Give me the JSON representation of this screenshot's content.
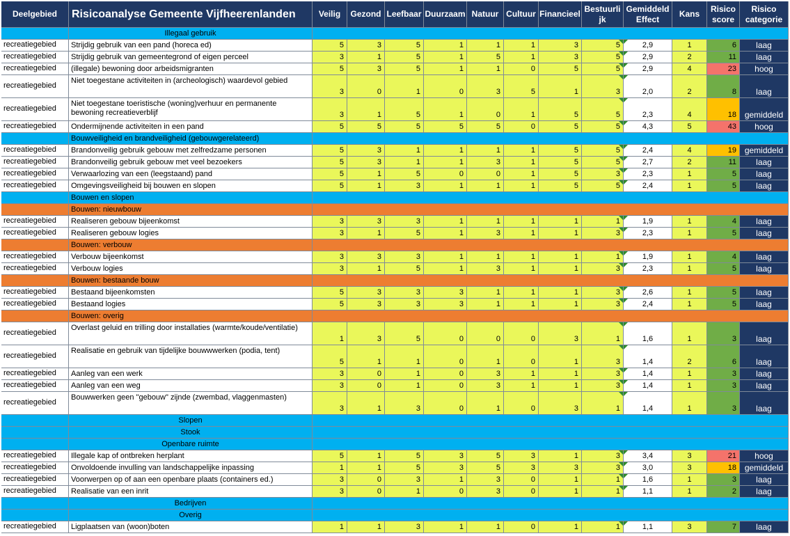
{
  "headers": {
    "deelgebied": "Deelgebied",
    "title": "Risicoanalyse Gemeente Vijfheerenlanden",
    "veilig": "Veilig",
    "gezond": "Gezond",
    "leefbaar": "Leefbaar",
    "duurzaam": "Duurzaam",
    "natuur": "Natuur",
    "cultuur": "Cultuur",
    "financieel": "Financieel",
    "bestuurlijk": "Bestuurlijk",
    "gemiddeld_effect": "Gemiddeld Effect",
    "kans": "Kans",
    "risico_score": "Risico score",
    "risico_categorie": "Risico categorie"
  },
  "colors": {
    "header_bg": "#1f3864",
    "section_blue": "#00b0f0",
    "section_orange": "#ed7d31",
    "value_yellow": "#eaf75a",
    "score_green": "#70ad47",
    "score_orange": "#ffc000",
    "score_red": "#f4736b"
  },
  "rows": [
    {
      "type": "section",
      "style": "blue",
      "label": "Illegaal gebruik",
      "align": "center"
    },
    {
      "type": "data",
      "h": 17,
      "dg": "recreatiegebied",
      "desc": "Strijdig gebruik van een pand (horeca ed)",
      "v": [
        "5",
        "3",
        "5",
        "1",
        "1",
        "1",
        "3",
        "5"
      ],
      "eff": "2,9",
      "kans": "1",
      "score": "6",
      "level": "green",
      "cat": "laag"
    },
    {
      "type": "data",
      "h": 17,
      "dg": "recreatiegebied",
      "desc": "Strijdig gebruik van gemeentegrond of eigen perceel",
      "v": [
        "3",
        "1",
        "5",
        "1",
        "5",
        "1",
        "3",
        "5"
      ],
      "eff": "2,9",
      "kans": "2",
      "score": "11",
      "level": "green",
      "cat": "laag"
    },
    {
      "type": "data",
      "h": 17,
      "dg": "recreatiegebied",
      "desc": "(illegale) bewoning door arbeidsmigranten",
      "v": [
        "5",
        "3",
        "5",
        "1",
        "1",
        "0",
        "5",
        "5"
      ],
      "eff": "2,9",
      "kans": "4",
      "score": "23",
      "level": "red",
      "cat": "hoog"
    },
    {
      "type": "data",
      "h": 33,
      "dg": "recreatiegebied",
      "desc": "Niet toegestane activiteiten in (archeologisch) waardevol gebied",
      "v": [
        "3",
        "0",
        "1",
        "0",
        "3",
        "5",
        "1",
        "3"
      ],
      "eff": "2,0",
      "kans": "2",
      "score": "8",
      "level": "green",
      "cat": "laag"
    },
    {
      "type": "data",
      "h": 33,
      "dg": "recreatiegebied",
      "desc": "Niet toegestane toeristische (woning)verhuur en  permanente bewoning recreatieverblijf",
      "v": [
        "3",
        "1",
        "5",
        "1",
        "0",
        "1",
        "5",
        "5"
      ],
      "eff": "2,3",
      "kans": "4",
      "score": "18",
      "level": "orange",
      "cat": "gemiddeld"
    },
    {
      "type": "data",
      "h": 17,
      "dg": "recreatiegebied",
      "desc": "Ondermijnende activiteiten in een pand",
      "v": [
        "5",
        "5",
        "5",
        "5",
        "5",
        "0",
        "5",
        "5"
      ],
      "eff": "4,3",
      "kans": "5",
      "score": "43",
      "level": "red",
      "cat": "hoog"
    },
    {
      "type": "section",
      "style": "blue",
      "label": "Bouwveiligheid en brandveiligheid (gebouwgerelateerd)",
      "align": "left"
    },
    {
      "type": "data",
      "h": 17,
      "dg": "recreatiegebied",
      "desc": "Brandonveilig gebruik gebouw met zelfredzame personen",
      "v": [
        "5",
        "3",
        "1",
        "1",
        "1",
        "1",
        "5",
        "5"
      ],
      "eff": "2,4",
      "kans": "4",
      "score": "19",
      "level": "orange",
      "cat": "gemiddeld"
    },
    {
      "type": "data",
      "h": 17,
      "dg": "recreatiegebied",
      "desc": "Brandonveilig gebruik gebouw met veel bezoekers",
      "v": [
        "5",
        "3",
        "1",
        "1",
        "3",
        "1",
        "5",
        "5"
      ],
      "eff": "2,7",
      "kans": "2",
      "score": "11",
      "level": "green",
      "cat": "laag"
    },
    {
      "type": "data",
      "h": 17,
      "dg": "recreatiegebied",
      "desc": "Verwaarlozing van een (leegstaand) pand",
      "v": [
        "5",
        "1",
        "5",
        "0",
        "0",
        "1",
        "5",
        "3"
      ],
      "eff": "2,3",
      "kans": "1",
      "score": "5",
      "level": "green",
      "cat": "laag"
    },
    {
      "type": "data",
      "h": 17,
      "dg": "recreatiegebied",
      "desc": "Omgevingsveiligheid bij bouwen en slopen",
      "v": [
        "5",
        "1",
        "3",
        "1",
        "1",
        "1",
        "5",
        "5"
      ],
      "eff": "2,4",
      "kans": "1",
      "score": "5",
      "level": "green",
      "cat": "laag"
    },
    {
      "type": "section",
      "style": "blue",
      "label": "Bouwen en slopen",
      "align": "left"
    },
    {
      "type": "section",
      "style": "orange",
      "label": "Bouwen: nieuwbouw",
      "align": "left"
    },
    {
      "type": "data",
      "h": 17,
      "dg": "recreatiegebied",
      "desc": "Realiseren gebouw bijeenkomst",
      "v": [
        "3",
        "3",
        "3",
        "1",
        "1",
        "1",
        "1",
        "1"
      ],
      "eff": "1,9",
      "kans": "1",
      "score": "4",
      "level": "green",
      "cat": "laag"
    },
    {
      "type": "data",
      "h": 17,
      "dg": "recreatiegebied",
      "desc": "Realiseren gebouw logies",
      "v": [
        "3",
        "1",
        "5",
        "1",
        "3",
        "1",
        "1",
        "3"
      ],
      "eff": "2,3",
      "kans": "1",
      "score": "5",
      "level": "green",
      "cat": "laag"
    },
    {
      "type": "section",
      "style": "orange",
      "label": "Bouwen: verbouw",
      "align": "left"
    },
    {
      "type": "data",
      "h": 17,
      "dg": "recreatiegebied",
      "desc": "Verbouw bijeenkomst",
      "v": [
        "3",
        "3",
        "3",
        "1",
        "1",
        "1",
        "1",
        "1"
      ],
      "eff": "1,9",
      "kans": "1",
      "score": "4",
      "level": "green",
      "cat": "laag"
    },
    {
      "type": "data",
      "h": 17,
      "dg": "recreatiegebied",
      "desc": "Verbouw logies",
      "v": [
        "3",
        "1",
        "5",
        "1",
        "3",
        "1",
        "1",
        "3"
      ],
      "eff": "2,3",
      "kans": "1",
      "score": "5",
      "level": "green",
      "cat": "laag"
    },
    {
      "type": "section",
      "style": "orange",
      "label": "Bouwen: bestaande bouw",
      "align": "left"
    },
    {
      "type": "data",
      "h": 17,
      "dg": "recreatiegebied",
      "desc": "Bestaand bijeenkomsten",
      "v": [
        "5",
        "3",
        "3",
        "3",
        "1",
        "1",
        "1",
        "3"
      ],
      "eff": "2,6",
      "kans": "1",
      "score": "5",
      "level": "green",
      "cat": "laag"
    },
    {
      "type": "data",
      "h": 17,
      "dg": "recreatiegebied",
      "desc": "Bestaand logies",
      "v": [
        "5",
        "3",
        "3",
        "3",
        "1",
        "1",
        "1",
        "3"
      ],
      "eff": "2,4",
      "kans": "1",
      "score": "5",
      "level": "green",
      "cat": "laag"
    },
    {
      "type": "section",
      "style": "orange",
      "label": "Bouwen: overig",
      "align": "left"
    },
    {
      "type": "data",
      "h": 33,
      "dg": "recreatiegebied",
      "desc": "Overlast geluid en trilling door installaties (warmte/koude/ventilatie)",
      "v": [
        "1",
        "3",
        "5",
        "0",
        "0",
        "0",
        "3",
        "1"
      ],
      "eff": "1,6",
      "kans": "1",
      "score": "3",
      "level": "green",
      "cat": "laag"
    },
    {
      "type": "data",
      "h": 33,
      "dg": "recreatiegebied",
      "desc": "Realisatie en gebruik van tijdelijke bouwwwerken (podia, tent)",
      "v": [
        "5",
        "1",
        "1",
        "0",
        "1",
        "0",
        "1",
        "3"
      ],
      "eff": "1,4",
      "kans": "2",
      "score": "6",
      "level": "green",
      "cat": "laag"
    },
    {
      "type": "data",
      "h": 17,
      "dg": "recreatiegebied",
      "desc": "Aanleg van een werk",
      "v": [
        "3",
        "0",
        "1",
        "0",
        "3",
        "1",
        "1",
        "3"
      ],
      "eff": "1,4",
      "kans": "1",
      "score": "3",
      "level": "green",
      "cat": "laag"
    },
    {
      "type": "data",
      "h": 17,
      "dg": "recreatiegebied",
      "desc": "Aanleg van een weg",
      "v": [
        "3",
        "0",
        "1",
        "0",
        "3",
        "1",
        "1",
        "3"
      ],
      "eff": "1,4",
      "kans": "1",
      "score": "3",
      "level": "green",
      "cat": "laag"
    },
    {
      "type": "data",
      "h": 33,
      "dg": "recreatiegebied",
      "desc": "Bouwwerken geen \"gebouw\" zijnde (zwembad, vlaggenmasten)",
      "v": [
        "3",
        "1",
        "3",
        "0",
        "1",
        "0",
        "3",
        "1"
      ],
      "eff": "1,4",
      "kans": "1",
      "score": "3",
      "level": "green",
      "cat": "laag"
    },
    {
      "type": "section",
      "style": "blue",
      "label": "Slopen",
      "align": "center"
    },
    {
      "type": "section",
      "style": "blue",
      "label": "Stook",
      "align": "center"
    },
    {
      "type": "section",
      "style": "blue",
      "label": "Openbare ruimte",
      "align": "center"
    },
    {
      "type": "data",
      "h": 17,
      "dg": "recreatiegebied",
      "desc": "Illegale kap of ontbreken herplant",
      "v": [
        "5",
        "1",
        "5",
        "3",
        "5",
        "3",
        "1",
        "3"
      ],
      "eff": "3,4",
      "kans": "3",
      "score": "21",
      "level": "red",
      "cat": "hoog"
    },
    {
      "type": "data",
      "h": 17,
      "dg": "recreatiegebied",
      "desc": "Onvoldoende invulling van landschappelijke inpassing",
      "v": [
        "1",
        "1",
        "5",
        "3",
        "5",
        "3",
        "3",
        "3"
      ],
      "eff": "3,0",
      "kans": "3",
      "score": "18",
      "level": "orange",
      "cat": "gemiddeld"
    },
    {
      "type": "data",
      "h": 17,
      "dg": "recreatiegebied",
      "desc": "Voorwerpen op of aan een openbare plaats (containers ed.)",
      "v": [
        "3",
        "0",
        "3",
        "1",
        "3",
        "0",
        "1",
        "1"
      ],
      "eff": "1,6",
      "kans": "1",
      "score": "3",
      "level": "green",
      "cat": "laag"
    },
    {
      "type": "data",
      "h": 17,
      "dg": "recreatiegebied",
      "desc": "Realisatie van een inrit",
      "v": [
        "3",
        "0",
        "1",
        "0",
        "3",
        "0",
        "1",
        "1"
      ],
      "eff": "1,1",
      "kans": "1",
      "score": "2",
      "level": "green",
      "cat": "laag"
    },
    {
      "type": "section",
      "style": "blue",
      "label": "Bedrijven",
      "align": "center"
    },
    {
      "type": "section",
      "style": "blue",
      "label": "Overig",
      "align": "center"
    },
    {
      "type": "data",
      "h": 17,
      "dg": "recreatiegebied",
      "desc": "Ligplaatsen van (woon)boten",
      "v": [
        "1",
        "1",
        "3",
        "1",
        "1",
        "0",
        "1",
        "1"
      ],
      "eff": "1,1",
      "kans": "3",
      "score": "7",
      "level": "green",
      "cat": "laag"
    }
  ]
}
